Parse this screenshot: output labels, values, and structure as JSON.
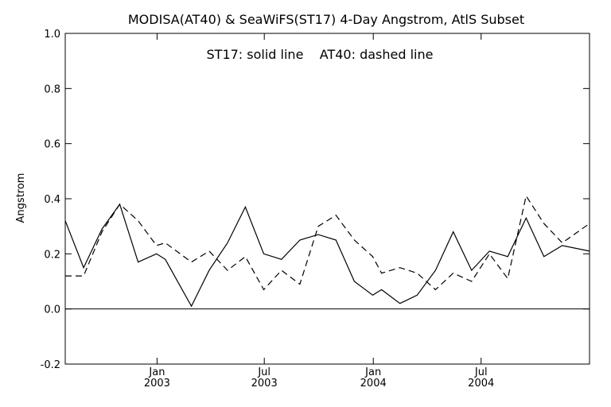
{
  "chart_data": {
    "type": "line",
    "title": "MODISA(AT40) & SeaWiFS(ST17) 4-Day Angstrom, AtlS Subset",
    "annotation": "ST17: solid line    AT40: dashed line",
    "ylabel": "Angstrom",
    "xlabel": "",
    "ylim": [
      -0.2,
      1.0
    ],
    "yticks": [
      "-0.2",
      "0.0",
      "0.2",
      "0.4",
      "0.6",
      "0.8",
      "1.0"
    ],
    "ytick_values": [
      -0.2,
      0.0,
      0.2,
      0.4,
      0.6,
      0.8,
      1.0
    ],
    "xlim": [
      "2002-07-30",
      "2004-12-31"
    ],
    "xticks": [
      {
        "date": "2003-01-01",
        "month": "Jan",
        "year": "2003"
      },
      {
        "date": "2003-07-01",
        "month": "Jul",
        "year": "2003"
      },
      {
        "date": "2004-01-01",
        "month": "Jan",
        "year": "2004"
      },
      {
        "date": "2004-07-01",
        "month": "Jul",
        "year": "2004"
      }
    ],
    "zero_line": true,
    "series": [
      {
        "name": "ST17",
        "style": "solid",
        "color": "#000000",
        "points": [
          {
            "x": "2002-07-30",
            "y": 0.32
          },
          {
            "x": "2002-08-30",
            "y": 0.15
          },
          {
            "x": "2002-09-30",
            "y": 0.29
          },
          {
            "x": "2002-10-30",
            "y": 0.38
          },
          {
            "x": "2002-11-30",
            "y": 0.17
          },
          {
            "x": "2002-12-31",
            "y": 0.2
          },
          {
            "x": "2003-01-15",
            "y": 0.18
          },
          {
            "x": "2003-02-28",
            "y": 0.01
          },
          {
            "x": "2003-03-30",
            "y": 0.14
          },
          {
            "x": "2003-04-30",
            "y": 0.24
          },
          {
            "x": "2003-05-30",
            "y": 0.37
          },
          {
            "x": "2003-06-30",
            "y": 0.2
          },
          {
            "x": "2003-07-30",
            "y": 0.18
          },
          {
            "x": "2003-08-30",
            "y": 0.25
          },
          {
            "x": "2003-09-30",
            "y": 0.27
          },
          {
            "x": "2003-10-30",
            "y": 0.25
          },
          {
            "x": "2003-11-30",
            "y": 0.1
          },
          {
            "x": "2003-12-31",
            "y": 0.05
          },
          {
            "x": "2004-01-15",
            "y": 0.07
          },
          {
            "x": "2004-02-15",
            "y": 0.02
          },
          {
            "x": "2004-03-15",
            "y": 0.05
          },
          {
            "x": "2004-04-15",
            "y": 0.14
          },
          {
            "x": "2004-05-15",
            "y": 0.28
          },
          {
            "x": "2004-06-15",
            "y": 0.14
          },
          {
            "x": "2004-07-15",
            "y": 0.21
          },
          {
            "x": "2004-08-15",
            "y": 0.19
          },
          {
            "x": "2004-09-15",
            "y": 0.33
          },
          {
            "x": "2004-10-15",
            "y": 0.19
          },
          {
            "x": "2004-11-15",
            "y": 0.23
          },
          {
            "x": "2004-12-31",
            "y": 0.21
          }
        ]
      },
      {
        "name": "AT40",
        "style": "dashed",
        "color": "#000000",
        "points": [
          {
            "x": "2002-07-30",
            "y": 0.12
          },
          {
            "x": "2002-08-30",
            "y": 0.12
          },
          {
            "x": "2002-09-30",
            "y": 0.28
          },
          {
            "x": "2002-10-30",
            "y": 0.38
          },
          {
            "x": "2002-11-30",
            "y": 0.32
          },
          {
            "x": "2002-12-31",
            "y": 0.23
          },
          {
            "x": "2003-01-15",
            "y": 0.24
          },
          {
            "x": "2003-02-28",
            "y": 0.17
          },
          {
            "x": "2003-03-30",
            "y": 0.21
          },
          {
            "x": "2003-04-30",
            "y": 0.14
          },
          {
            "x": "2003-05-30",
            "y": 0.19
          },
          {
            "x": "2003-06-30",
            "y": 0.07
          },
          {
            "x": "2003-07-30",
            "y": 0.14
          },
          {
            "x": "2003-08-30",
            "y": 0.09
          },
          {
            "x": "2003-09-30",
            "y": 0.3
          },
          {
            "x": "2003-10-30",
            "y": 0.34
          },
          {
            "x": "2003-11-30",
            "y": 0.25
          },
          {
            "x": "2003-12-31",
            "y": 0.19
          },
          {
            "x": "2004-01-15",
            "y": 0.13
          },
          {
            "x": "2004-02-15",
            "y": 0.15
          },
          {
            "x": "2004-03-15",
            "y": 0.13
          },
          {
            "x": "2004-04-15",
            "y": 0.07
          },
          {
            "x": "2004-05-15",
            "y": 0.13
          },
          {
            "x": "2004-06-15",
            "y": 0.1
          },
          {
            "x": "2004-07-15",
            "y": 0.2
          },
          {
            "x": "2004-08-15",
            "y": 0.11
          },
          {
            "x": "2004-09-15",
            "y": 0.41
          },
          {
            "x": "2004-10-15",
            "y": 0.31
          },
          {
            "x": "2004-11-15",
            "y": 0.24
          },
          {
            "x": "2004-12-31",
            "y": 0.31
          }
        ]
      }
    ]
  }
}
